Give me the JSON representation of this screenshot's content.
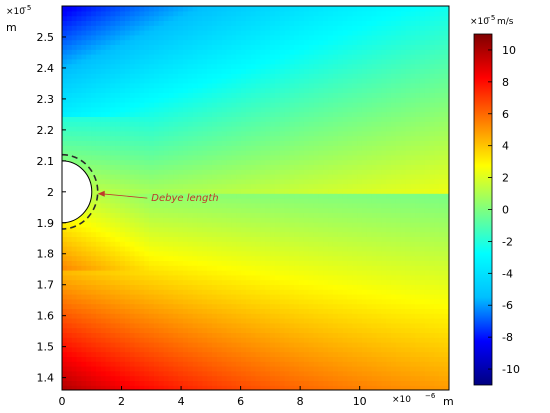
{
  "chart_data": {
    "type": "heatmap",
    "title": "",
    "x_axis": {
      "label": "m",
      "multiplier": "×10",
      "exponent": "−6",
      "range": [
        0,
        13
      ],
      "ticks": [
        0,
        2,
        4,
        6,
        8,
        10
      ],
      "tick_labels": [
        "0",
        "2",
        "4",
        "6",
        "8",
        "10"
      ]
    },
    "y_axis": {
      "label": "m",
      "multiplier": "×10",
      "exponent": "−5",
      "range": [
        1.36,
        2.6
      ],
      "ticks": [
        1.4,
        1.5,
        1.6,
        1.7,
        1.8,
        1.9,
        2.0,
        2.1,
        2.2,
        2.3,
        2.4,
        2.5
      ],
      "tick_labels": [
        "1.4",
        "1.5",
        "1.6",
        "1.7",
        "1.8",
        "1.9",
        "2",
        "2.1",
        "2.2",
        "2.3",
        "2.4",
        "2.5"
      ]
    },
    "colorbar": {
      "label_prefix": "×10",
      "exponent": "−5",
      "unit": "m/s",
      "range": [
        -11,
        11
      ],
      "ticks": [
        -10,
        -8,
        -6,
        -4,
        -2,
        0,
        2,
        4,
        6,
        8,
        10
      ],
      "tick_labels": [
        "-10",
        "-8",
        "-6",
        "-4",
        "-2",
        "0",
        "2",
        "4",
        "6",
        "8",
        "10"
      ],
      "colormap": [
        "#00007f",
        "#0000ff",
        "#00bfff",
        "#00ffff",
        "#7fff7f",
        "#ffff00",
        "#ff7f00",
        "#ff0000",
        "#7f0000"
      ]
    },
    "field_samples": {
      "description_points": [
        {
          "x": 0.5,
          "y": 2.55,
          "value": -10
        },
        {
          "x": 12.5,
          "y": 2.55,
          "value": -3.5
        },
        {
          "x": 6,
          "y": 2.0,
          "value": 0.5
        },
        {
          "x": 0.5,
          "y": 1.4,
          "value": 10
        },
        {
          "x": 12.5,
          "y": 1.4,
          "value": 4.5
        }
      ]
    },
    "obstacle": {
      "center": [
        0,
        2.0
      ],
      "radius_um": 1.0,
      "debye_radius_um": 1.2
    },
    "annotation": {
      "text": "Debye length",
      "arrow_to": [
        1.2,
        2.0
      ],
      "text_at": [
        3.0,
        1.97
      ]
    },
    "grid": false
  }
}
